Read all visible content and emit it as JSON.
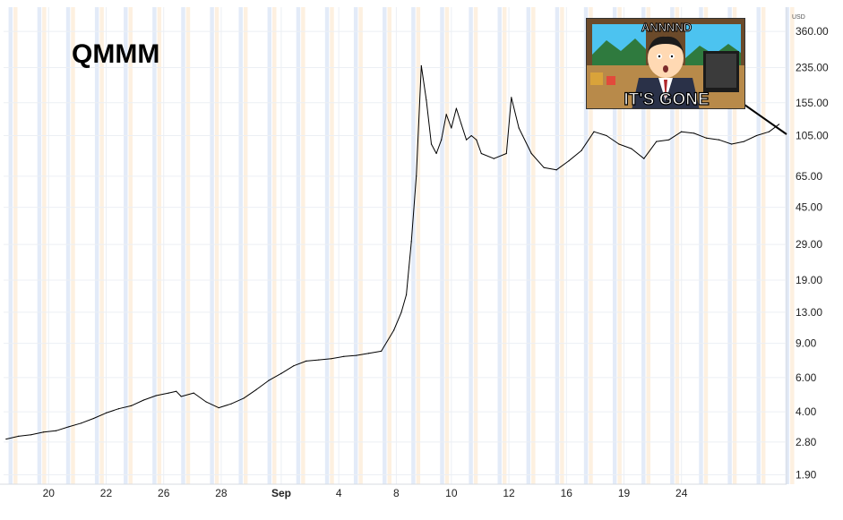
{
  "chart_data": {
    "type": "line",
    "title": "QMMM",
    "currency": "USD",
    "scale": "log",
    "ylim": [
      1.7,
      480
    ],
    "y_ticks": [
      "360.00",
      "235.00",
      "155.00",
      "105.00",
      "65.00",
      "45.00",
      "29.00",
      "19.00",
      "13.00",
      "9.00",
      "6.00",
      "4.00",
      "2.80",
      "1.90"
    ],
    "x_ticks": [
      "20",
      "22",
      "26",
      "28",
      "Sep",
      "4",
      "8",
      "10",
      "12",
      "16",
      "19",
      "24"
    ],
    "x_tick_index": [
      17,
      40,
      63,
      86,
      110,
      133,
      156,
      178,
      201,
      224,
      247,
      270
    ],
    "index_range": [
      -1,
      312
    ],
    "grid": true,
    "series": [
      {
        "index": [
          0,
          5,
          10,
          15,
          20,
          25,
          30,
          35,
          40,
          45,
          50,
          55,
          60,
          65,
          68,
          70,
          75,
          80,
          85,
          90,
          95,
          100,
          105,
          110,
          115,
          120,
          125,
          130,
          135,
          140,
          145,
          150,
          155,
          158,
          160,
          162,
          164,
          166,
          168,
          170,
          172,
          174,
          176,
          178,
          180,
          182,
          184,
          186,
          188,
          190,
          195,
          200,
          202,
          205,
          210,
          215,
          220,
          225,
          230,
          235,
          240,
          245,
          250,
          255,
          260,
          265,
          270,
          275,
          280,
          285,
          290,
          295,
          300,
          305,
          309
        ],
        "values": [
          2.9,
          3.0,
          3.05,
          3.15,
          3.2,
          3.35,
          3.5,
          3.7,
          3.95,
          4.15,
          4.3,
          4.6,
          4.85,
          5.0,
          5.1,
          4.8,
          5.0,
          4.5,
          4.2,
          4.4,
          4.7,
          5.2,
          5.8,
          6.3,
          6.9,
          7.3,
          7.4,
          7.5,
          7.7,
          7.8,
          8.0,
          8.2,
          10.5,
          13.0,
          16.0,
          30.0,
          65.0,
          240.0,
          160.0,
          95.0,
          85.0,
          100.0,
          135.0,
          115.0,
          145.0,
          120.0,
          100.0,
          105.0,
          100.0,
          85.0,
          80.0,
          85.0,
          165.0,
          115.0,
          85.0,
          72.0,
          70.0,
          78.0,
          88.0,
          110.0,
          105.0,
          95.0,
          90.0,
          80.0,
          98.0,
          100.0,
          110.0,
          108.0,
          102.0,
          100.0,
          95.0,
          98.0,
          105.0,
          110.0,
          120.0
        ]
      }
    ]
  },
  "meme": {
    "top_text": "ANNNND",
    "bottom_text": "IT'S GONE"
  },
  "colors": {
    "line": "#000000",
    "grid": "#eceff4",
    "band_blue": "#e3ebf8",
    "band_orange": "#fdf0e0",
    "axis_text": "#222222",
    "sky": "#4cc3f0",
    "suit": "#2a3148",
    "wood": "#b88a4a"
  }
}
